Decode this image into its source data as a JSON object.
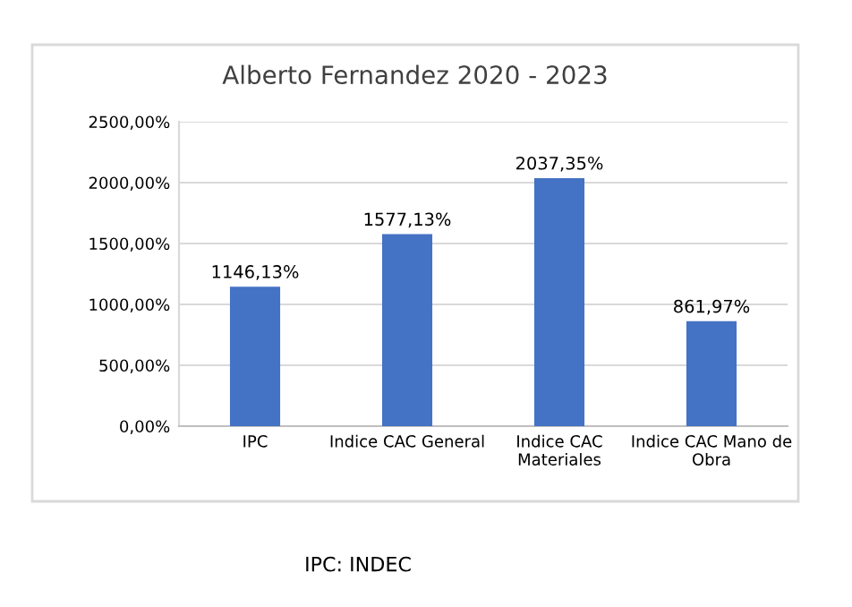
{
  "chart_data": {
    "type": "bar",
    "title": "Alberto Fernandez 2020 - 2023",
    "categories": [
      "IPC",
      "Indice CAC General",
      "Indice CAC\nMateriales",
      "Indice CAC Mano de\nObra"
    ],
    "values": [
      1146.13,
      1577.13,
      2037.35,
      861.97
    ],
    "value_labels": [
      "1146,13%",
      "1577,13%",
      "2037,35%",
      "861,97%"
    ],
    "color": "#4472c4",
    "ylim": [
      0,
      2500
    ],
    "yticks": [
      {
        "value": 0,
        "label": "0,00%"
      },
      {
        "value": 500,
        "label": "500,00%"
      },
      {
        "value": 1000,
        "label": "1000,00%"
      },
      {
        "value": 1500,
        "label": "1500,00%"
      },
      {
        "value": 2000,
        "label": "2000,00%"
      },
      {
        "value": 2500,
        "label": "2500,00%"
      }
    ],
    "grid": "y",
    "annotations": [
      "IPC: INDEC"
    ]
  }
}
